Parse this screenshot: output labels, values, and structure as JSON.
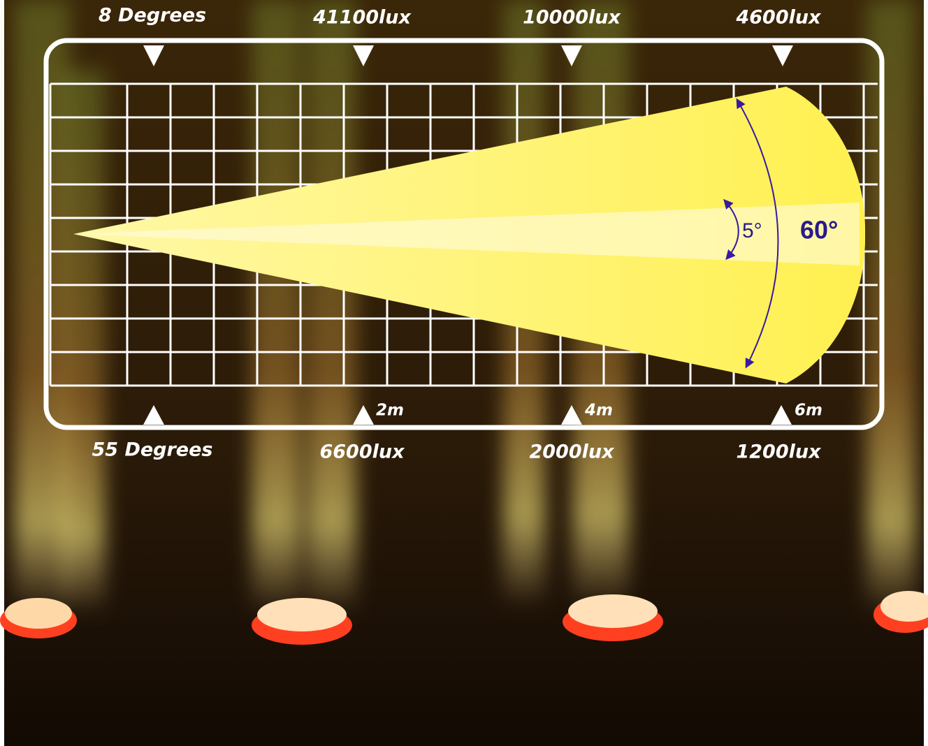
{
  "top_row": {
    "angle": "8 Degrees",
    "lux": [
      "41100lux",
      "10000lux",
      "4600lux"
    ]
  },
  "bottom_row": {
    "angle": "55 Degrees",
    "lux": [
      "6600lux",
      "2000lux",
      "1200lux"
    ]
  },
  "distances": [
    "2m",
    "4m",
    "6m"
  ],
  "angles": {
    "inner": "5°",
    "outer": "60°"
  }
}
